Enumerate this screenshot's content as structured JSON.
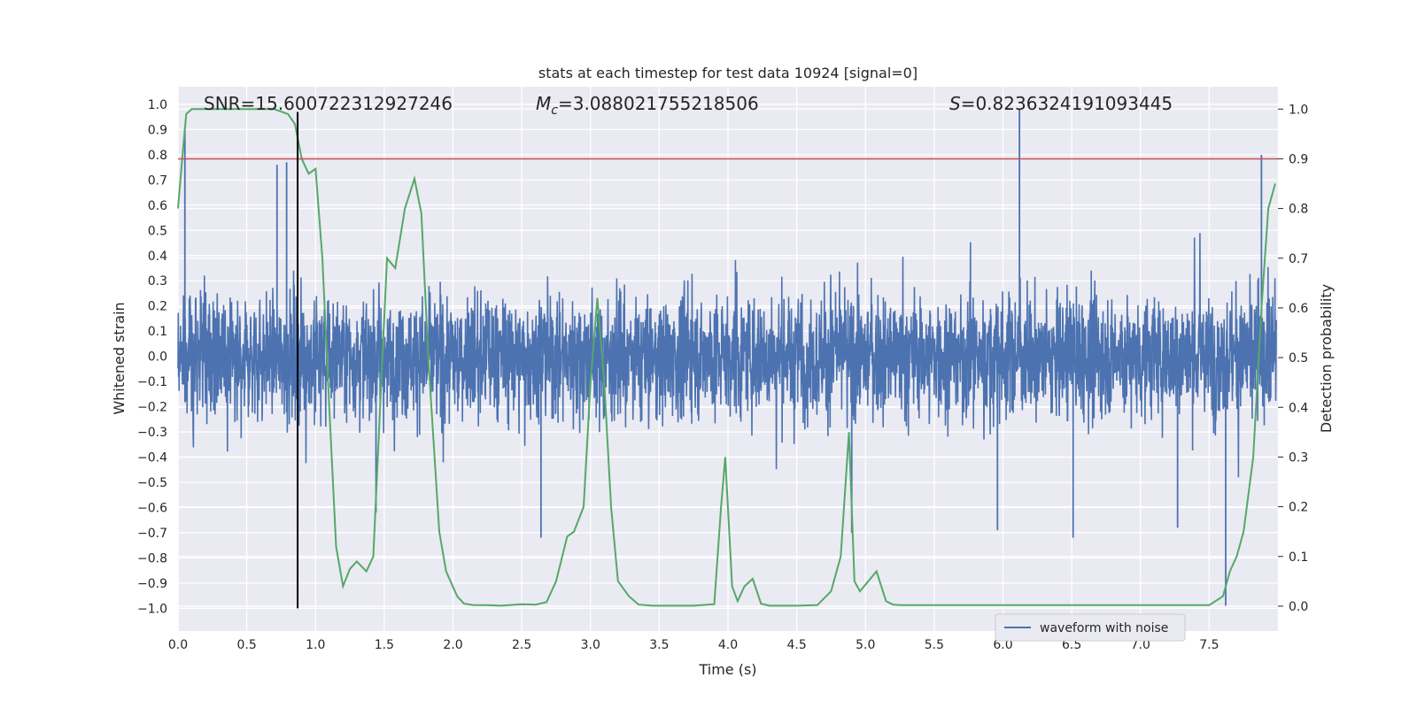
{
  "chart_data": {
    "type": "line",
    "title": "stats at each timestep for test data 10924 [signal=0]",
    "xlabel": "Time (s)",
    "ylabel_left": "Whitened strain",
    "ylabel_right": "Detection probability",
    "xlim": [
      0.0,
      8.0
    ],
    "ylim_left": [
      -1.09,
      1.07
    ],
    "ylim_right": [
      -0.05,
      1.045
    ],
    "x_ticks": [
      "0.0",
      "0.5",
      "1.0",
      "1.5",
      "2.0",
      "2.5",
      "3.0",
      "3.5",
      "4.0",
      "4.5",
      "5.0",
      "5.5",
      "6.0",
      "6.5",
      "7.0",
      "7.5"
    ],
    "y_left_ticks": [
      "1.0",
      "0.9",
      "0.8",
      "0.7",
      "0.6",
      "0.5",
      "0.4",
      "0.3",
      "0.2",
      "0.1",
      "0.0",
      "-0.1",
      "-0.2",
      "-0.3",
      "-0.4",
      "-0.5",
      "-0.6",
      "-0.7",
      "-0.8",
      "-0.9",
      "-1.0"
    ],
    "y_right_ticks": [
      "1.0",
      "0.9",
      "0.8",
      "0.7",
      "0.6",
      "0.5",
      "0.4",
      "0.3",
      "0.2",
      "0.1",
      "0.0"
    ],
    "annotations": {
      "snr": "SNR=15.600722312927246",
      "mc_symbol": "M",
      "mc_sub": "c",
      "mc_value": "=3.088021755218506",
      "s_symbol": "S",
      "s_value": "=0.8236324191093445"
    },
    "threshold_line": {
      "axis": "right",
      "y": 0.9,
      "color": "#c44e52"
    },
    "marker_line": {
      "x": 0.87,
      "y_range": [
        -1.0,
        0.97
      ],
      "color": "#000000"
    },
    "waveform": {
      "name": "waveform with noise",
      "color": "#4c72b0",
      "envelope_typical": 0.42,
      "spikes": [
        {
          "x": 0.05,
          "y": 0.9
        },
        {
          "x": 0.72,
          "y": 0.76
        },
        {
          "x": 0.79,
          "y": 0.77
        },
        {
          "x": 6.12,
          "y": 0.98
        },
        {
          "x": 7.88,
          "y": 0.8
        },
        {
          "x": 7.62,
          "y": -0.99
        },
        {
          "x": 1.44,
          "y": -0.62
        },
        {
          "x": 2.64,
          "y": -0.72
        },
        {
          "x": 4.9,
          "y": -0.7
        },
        {
          "x": 6.51,
          "y": -0.72
        },
        {
          "x": 5.96,
          "y": -0.69
        },
        {
          "x": 7.27,
          "y": -0.68
        }
      ]
    },
    "probability_series": {
      "color": "#55a868",
      "x": [
        0.0,
        0.03,
        0.06,
        0.1,
        0.15,
        0.2,
        0.3,
        0.4,
        0.5,
        0.6,
        0.7,
        0.8,
        0.85,
        0.9,
        0.95,
        1.0,
        1.05,
        1.1,
        1.15,
        1.2,
        1.25,
        1.3,
        1.37,
        1.42,
        1.47,
        1.52,
        1.58,
        1.65,
        1.72,
        1.77,
        1.82,
        1.9,
        1.95,
        2.03,
        2.08,
        2.15,
        2.25,
        2.35,
        2.5,
        2.6,
        2.68,
        2.75,
        2.83,
        2.88,
        2.95,
        3.0,
        3.05,
        3.1,
        3.15,
        3.2,
        3.28,
        3.35,
        3.45,
        3.6,
        3.75,
        3.9,
        3.95,
        3.98,
        4.03,
        4.07,
        4.12,
        4.18,
        4.24,
        4.3,
        4.4,
        4.5,
        4.65,
        4.75,
        4.82,
        4.88,
        4.92,
        4.96,
        5.02,
        5.08,
        5.15,
        5.2,
        5.25,
        5.4,
        5.7,
        6.0,
        6.3,
        6.6,
        6.9,
        7.1,
        7.2,
        7.3,
        7.5,
        7.6,
        7.65,
        7.7,
        7.75,
        7.82,
        7.88,
        7.93,
        7.98
      ],
      "y": [
        0.8,
        0.9,
        0.99,
        1.0,
        1.0,
        1.0,
        1.0,
        1.0,
        1.0,
        1.0,
        1.0,
        0.99,
        0.97,
        0.9,
        0.87,
        0.88,
        0.7,
        0.4,
        0.12,
        0.04,
        0.075,
        0.09,
        0.07,
        0.1,
        0.4,
        0.7,
        0.68,
        0.8,
        0.86,
        0.79,
        0.5,
        0.15,
        0.07,
        0.02,
        0.005,
        0.002,
        0.002,
        0.001,
        0.004,
        0.003,
        0.008,
        0.05,
        0.14,
        0.15,
        0.2,
        0.45,
        0.62,
        0.45,
        0.2,
        0.05,
        0.02,
        0.003,
        0.001,
        0.001,
        0.001,
        0.004,
        0.2,
        0.3,
        0.04,
        0.01,
        0.04,
        0.055,
        0.005,
        0.001,
        0.001,
        0.001,
        0.002,
        0.03,
        0.1,
        0.35,
        0.05,
        0.03,
        0.05,
        0.07,
        0.01,
        0.003,
        0.002,
        0.002,
        0.002,
        0.002,
        0.002,
        0.002,
        0.002,
        0.002,
        0.002,
        0.002,
        0.002,
        0.02,
        0.07,
        0.1,
        0.15,
        0.3,
        0.6,
        0.8,
        0.85
      ]
    },
    "legend": {
      "position": "lower-center-right",
      "entries": [
        "waveform with noise"
      ]
    }
  }
}
